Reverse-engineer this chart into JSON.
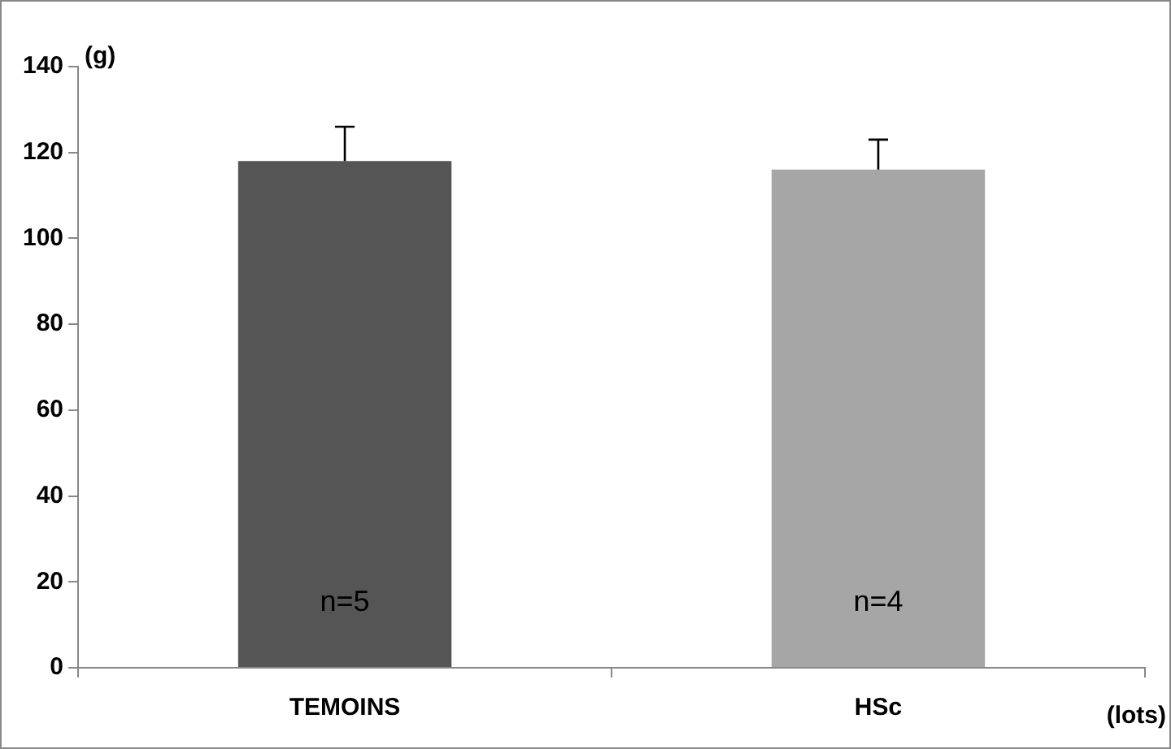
{
  "chart_data": {
    "type": "bar",
    "ylabel": "(g)",
    "xlabel": "(lots)",
    "categories": [
      "TEMOINS",
      "HSc"
    ],
    "values": [
      118,
      116
    ],
    "colors": [
      "#555555",
      "#a6a6a6"
    ],
    "errors": [
      [
        118,
        126
      ],
      [
        116,
        123
      ]
    ],
    "ylim": [
      0,
      140
    ],
    "yticks": [
      0,
      20,
      40,
      60,
      80,
      100,
      120,
      140
    ],
    "grid": false,
    "legend": false,
    "annotations": [
      "n=5",
      "n=4"
    ]
  }
}
